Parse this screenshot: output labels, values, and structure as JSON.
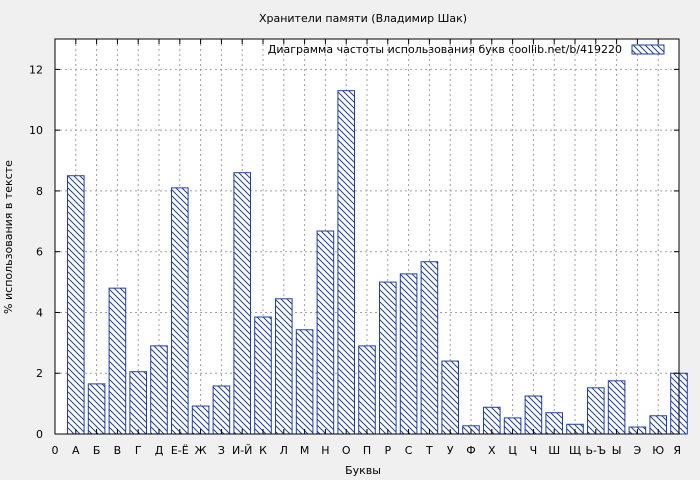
{
  "chart_data": {
    "type": "bar",
    "title": "Хранители памяти (Владимир Шак)",
    "xlabel": "Буквы",
    "ylabel": "% использования в тексте",
    "legend": {
      "label": "Диаграмма частоты использования букв  coollib.net/b/419220",
      "placement": "top-right"
    },
    "categories": [
      "А",
      "Б",
      "В",
      "Г",
      "Д",
      "Е-Ё",
      "Ж",
      "З",
      "И-Й",
      "К",
      "Л",
      "М",
      "Н",
      "О",
      "П",
      "Р",
      "С",
      "Т",
      "У",
      "Ф",
      "Х",
      "Ц",
      "Ч",
      "Ш",
      "Щ",
      "Ь-Ъ",
      "Ы",
      "Э",
      "Ю",
      "Я"
    ],
    "values": [
      8.5,
      1.65,
      4.8,
      2.05,
      2.9,
      8.1,
      0.92,
      1.58,
      8.6,
      3.85,
      4.45,
      3.43,
      6.68,
      11.3,
      2.9,
      5.0,
      5.27,
      5.67,
      2.4,
      0.27,
      0.88,
      0.53,
      1.25,
      0.7,
      0.32,
      1.52,
      1.75,
      0.23,
      0.6,
      2.0
    ],
    "x_axis_ticks": [
      "0",
      "А",
      "Б",
      "В",
      "Г",
      "Д",
      "Е-Ё",
      "Ж",
      "З",
      "И-Й",
      "К",
      "Л",
      "М",
      "Н",
      "О",
      "П",
      "Р",
      "С",
      "Т",
      "У",
      "Ф",
      "Х",
      "Ц",
      "Ч",
      "Ш",
      "Щ",
      "Ь-Ъ",
      "Ы",
      "Э",
      "Ю",
      "Я"
    ],
    "y_ticks": [
      0,
      2,
      4,
      6,
      8,
      10,
      12
    ],
    "ylim": [
      0,
      13
    ],
    "grid": true,
    "bar_color": "#1f3f9f"
  }
}
